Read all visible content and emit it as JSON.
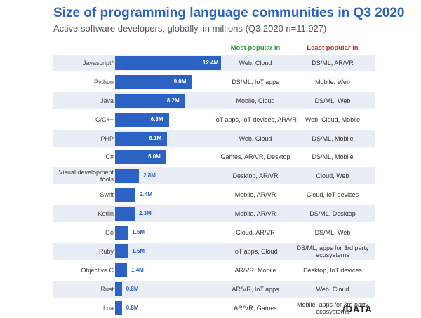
{
  "chart_data": {
    "type": "bar",
    "orientation": "horizontal",
    "title": "Size of programming language communities in Q3 2020",
    "subtitle": "Active software developers, globally, in millions (Q3 2020 n=11,927)",
    "column_headers": {
      "most": "Most popular in",
      "least": "Least popular in"
    },
    "unit_suffix": "M",
    "xlim": [
      0,
      12.4
    ],
    "colors": {
      "bar": "#2c62c4",
      "title": "#2c62c4",
      "most_header": "#2e9a3e",
      "least_header": "#c8302c",
      "row_shade": "#e9edf5"
    },
    "categories": [
      "Javascript*",
      "Python",
      "Java",
      "C/C++",
      "PHP",
      "C#",
      "Visual development tools",
      "Swift",
      "Kotlin",
      "Go",
      "Ruby",
      "Objective C",
      "Rust",
      "Lua"
    ],
    "values": [
      12.4,
      9.0,
      8.2,
      6.3,
      6.1,
      6.0,
      2.8,
      2.4,
      2.3,
      1.5,
      1.5,
      1.4,
      0.8,
      0.8
    ],
    "value_labels": [
      "12.4M",
      "9.0M",
      "8.2M",
      "6.3M",
      "6.1M",
      "6.0M",
      "2.8M",
      "2.4M",
      "2.3M",
      "1.5M",
      "1.5M",
      "1.4M",
      "0.8M",
      "0.8M"
    ],
    "most_popular_in": [
      "Web, Cloud",
      "DS/ML, IoT apps",
      "Mobile, Cloud",
      "IoT apps, IoT devices, AR/VR",
      "Web, Cloud",
      "Games, AR/VR, Desktop",
      "Desktop, AR/VR",
      "Mobile, AR/VR",
      "Mobile, AR/VR",
      "Cloud, AR/VR",
      "IoT apps, Cloud",
      "AR/VR, Mobile",
      "AR/VR, IoT apps",
      "AR/VR, Games"
    ],
    "least_popular_in": [
      "DS/ML, AR/VR",
      "Mobile, Web",
      "DS/ML, Web",
      "Web, Cloud, Mobile",
      "DS/ML, Mobile",
      "DS/ML, Mobile",
      "Cloud, Web",
      "Cloud, IoT devices",
      "DS/ML, Desktop",
      "DS/ML, Web",
      "DS/ML, apps for 3rd party ecosystems",
      "Desktop, IoT devices",
      "Web, Cloud",
      "Mobile, apps for 3rd party ecosystems"
    ],
    "grid": false,
    "legend": "none"
  },
  "brand": {
    "logo_text": "/DATA"
  }
}
